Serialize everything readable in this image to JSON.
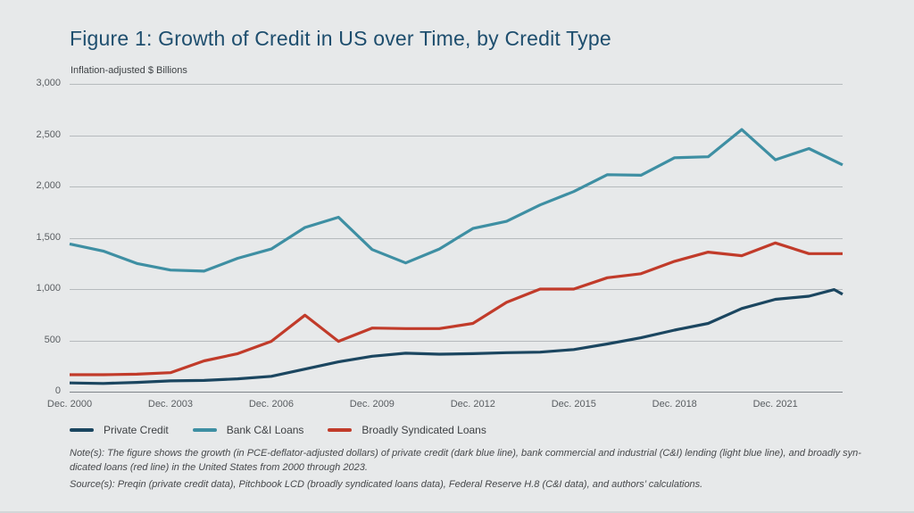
{
  "page": {
    "background": "#e7e9ea"
  },
  "figure": {
    "title": "Figure 1: Growth of Credit in US over Time, by Credit Type",
    "title_color": "#1e4e6e",
    "subtitle": "Inflation-adjusted $ Billions"
  },
  "chart_data": {
    "type": "line",
    "title": "Figure 1: Growth of Credit in US over Time, by Credit Type",
    "ylabel": "Inflation-adjusted $ Billions",
    "xlabel": "",
    "x_years": [
      2000,
      2001,
      2002,
      2003,
      2004,
      2005,
      2006,
      2007,
      2008,
      2009,
      2010,
      2011,
      2012,
      2013,
      2014,
      2015,
      2016,
      2017,
      2018,
      2019,
      2020,
      2021,
      2022,
      2023
    ],
    "x_note": "points are December of each year",
    "xtick_labels": [
      "Dec. 2000",
      "Dec. 2003",
      "Dec. 2006",
      "Dec. 2009",
      "Dec. 2012",
      "Dec. 2015",
      "Dec. 2018",
      "Dec. 2021"
    ],
    "yticks": [
      3000,
      2500,
      2000,
      1500,
      1000,
      500,
      0
    ],
    "ytick_labels": [
      "3,000",
      "2,500",
      "2,000",
      "1,500",
      "1,000",
      "500",
      "0"
    ],
    "ylim": [
      0,
      3000
    ],
    "grid": "horizontal",
    "legend_position": "bottom",
    "series": [
      {
        "name": "Private Credit",
        "color": "#1b4660",
        "values": [
          85,
          80,
          90,
          105,
          110,
          125,
          150,
          220,
          290,
          345,
          375,
          365,
          370,
          380,
          385,
          410,
          465,
          525,
          600,
          665,
          810,
          900,
          930,
          950
        ],
        "extra_points": [
          [
            22.75,
            995
          ]
        ]
      },
      {
        "name": "Bank C&I Loans",
        "color": "#3e8fa3",
        "values": [
          1440,
          1370,
          1250,
          1185,
          1175,
          1300,
          1390,
          1600,
          1700,
          1385,
          1255,
          1390,
          1590,
          1660,
          1820,
          1950,
          2115,
          2110,
          2280,
          2290,
          2555,
          2260,
          2370,
          2210
        ],
        "extra_points": []
      },
      {
        "name": "Broadly Syndicated Loans",
        "color": "#c13b2a",
        "values": [
          165,
          165,
          170,
          185,
          300,
          370,
          490,
          745,
          490,
          620,
          615,
          615,
          665,
          870,
          1000,
          1000,
          1110,
          1150,
          1270,
          1360,
          1325,
          1450,
          1345,
          1345
        ],
        "extra_points": []
      }
    ]
  },
  "notes": {
    "note_lines": [
      "Note(s): The figure shows the growth (in PCE-deflator-adjusted dollars) of private credit (dark blue line), bank commercial and industrial (C&I) lending (light blue line), and broadly syn-",
      "dicated loans (red line) in the United States from 2000 through 2023."
    ],
    "source_line": "Source(s): Preqin (private credit data), Pitchbook LCD (broadly syndicated loans data), Federal Reserve H.8 (C&I data), and authors’ calculations."
  },
  "colors": {
    "gridline": "#b6babd",
    "zero_line": "#7f858a",
    "axis_text": "#595d61",
    "note_text": "#46484b"
  }
}
